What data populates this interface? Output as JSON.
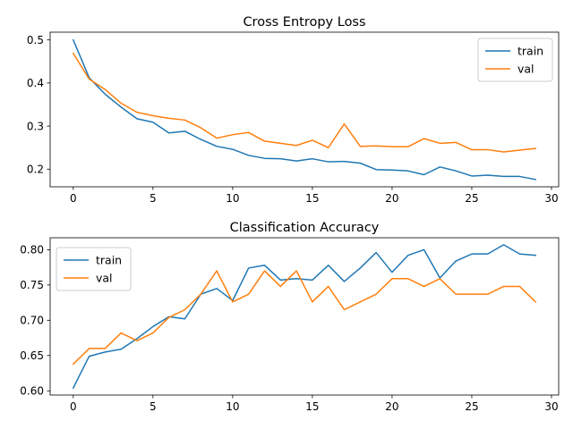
{
  "chart_data": [
    {
      "type": "line",
      "title": "Cross Entropy Loss",
      "xlabel": "",
      "ylabel": "",
      "xlim": [
        -1.45,
        30.45
      ],
      "ylim": [
        0.159,
        0.518
      ],
      "xticks": [
        0,
        5,
        10,
        15,
        20,
        25,
        30
      ],
      "yticks": [
        0.2,
        0.3,
        0.4,
        0.5
      ],
      "ytick_labels": [
        "0.2",
        "0.3",
        "0.4",
        "0.5"
      ],
      "grid": false,
      "legend": "upper right",
      "x": [
        0,
        1,
        2,
        3,
        4,
        5,
        6,
        7,
        8,
        9,
        10,
        11,
        12,
        13,
        14,
        15,
        16,
        17,
        18,
        19,
        20,
        21,
        22,
        23,
        24,
        25,
        26,
        27,
        28,
        29
      ],
      "series": [
        {
          "name": "train",
          "color": "#1f77b4",
          "values": [
            0.5,
            0.412,
            0.374,
            0.344,
            0.317,
            0.309,
            0.284,
            0.288,
            0.269,
            0.253,
            0.246,
            0.232,
            0.225,
            0.224,
            0.219,
            0.224,
            0.217,
            0.218,
            0.214,
            0.199,
            0.198,
            0.196,
            0.187,
            0.205,
            0.196,
            0.184,
            0.186,
            0.183,
            0.183,
            0.176
          ]
        },
        {
          "name": "val",
          "color": "#ff7f0e",
          "values": [
            0.469,
            0.409,
            0.385,
            0.353,
            0.332,
            0.324,
            0.318,
            0.314,
            0.296,
            0.272,
            0.28,
            0.285,
            0.265,
            0.26,
            0.255,
            0.267,
            0.25,
            0.305,
            0.253,
            0.254,
            0.252,
            0.252,
            0.271,
            0.26,
            0.262,
            0.245,
            0.245,
            0.24,
            0.244,
            0.248
          ]
        }
      ]
    },
    {
      "type": "line",
      "title": "Classification Accuracy",
      "xlabel": "",
      "ylabel": "",
      "xlim": [
        -1.45,
        30.45
      ],
      "ylim": [
        0.594,
        0.817
      ],
      "xticks": [
        0,
        5,
        10,
        15,
        20,
        25,
        30
      ],
      "yticks": [
        0.6,
        0.65,
        0.7,
        0.75,
        0.8
      ],
      "ytick_labels": [
        "0.60",
        "0.65",
        "0.70",
        "0.75",
        "0.80"
      ],
      "grid": false,
      "legend": "upper left",
      "x": [
        0,
        1,
        2,
        3,
        4,
        5,
        6,
        7,
        8,
        9,
        10,
        11,
        12,
        13,
        14,
        15,
        16,
        17,
        18,
        19,
        20,
        21,
        22,
        23,
        24,
        25,
        26,
        27,
        28,
        29
      ],
      "series": [
        {
          "name": "train",
          "color": "#1f77b4",
          "values": [
            0.604,
            0.649,
            0.655,
            0.659,
            0.674,
            0.691,
            0.705,
            0.702,
            0.737,
            0.745,
            0.728,
            0.774,
            0.778,
            0.757,
            0.759,
            0.757,
            0.778,
            0.755,
            0.774,
            0.796,
            0.768,
            0.792,
            0.8,
            0.76,
            0.784,
            0.794,
            0.794,
            0.807,
            0.794,
            0.792
          ]
        },
        {
          "name": "val",
          "color": "#ff7f0e",
          "values": [
            0.638,
            0.66,
            0.66,
            0.682,
            0.671,
            0.682,
            0.704,
            0.715,
            0.737,
            0.77,
            0.726,
            0.737,
            0.77,
            0.748,
            0.77,
            0.726,
            0.748,
            0.715,
            0.726,
            0.737,
            0.759,
            0.759,
            0.748,
            0.759,
            0.737,
            0.737,
            0.737,
            0.748,
            0.748,
            0.726
          ]
        }
      ]
    }
  ]
}
